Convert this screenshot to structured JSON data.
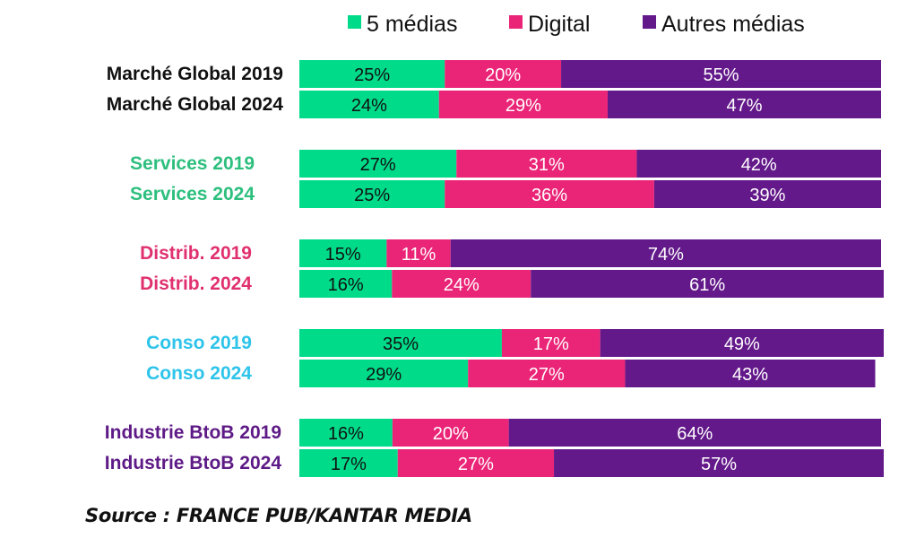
{
  "chart_data": {
    "type": "bar",
    "orientation": "horizontal",
    "stacked": true,
    "title": "",
    "xlabel": "",
    "ylabel": "",
    "grid": false,
    "legend_position": "top",
    "series": [
      {
        "name": "5 médias",
        "color": "#00DB8A",
        "label_color": "#111111",
        "values": [
          25,
          24,
          27,
          25,
          15,
          16,
          35,
          29,
          16,
          17
        ]
      },
      {
        "name": "Digital",
        "color": "#EA2577",
        "label_color": "#FFFFFF",
        "values": [
          20,
          29,
          31,
          36,
          11,
          24,
          17,
          27,
          20,
          27
        ]
      },
      {
        "name": "Autres médias",
        "color": "#63198A",
        "label_color": "#FFFFFF",
        "values": [
          55,
          47,
          42,
          39,
          74,
          61,
          49,
          43,
          64,
          57
        ]
      }
    ],
    "categories": [
      {
        "label": "Marché Global 2019",
        "group": 0,
        "color": "#111111"
      },
      {
        "label": "Marché Global 2024",
        "group": 0,
        "color": "#111111"
      },
      {
        "label": "Services 2019",
        "group": 1,
        "color": "#2DBF7E"
      },
      {
        "label": "Services 2024",
        "group": 1,
        "color": "#2DBF7E"
      },
      {
        "label": "Distrib. 2019",
        "group": 2,
        "color": "#E0306F"
      },
      {
        "label": "Distrib. 2024",
        "group": 2,
        "color": "#E0306F"
      },
      {
        "label": "Conso 2019",
        "group": 3,
        "color": "#2EC4EA"
      },
      {
        "label": "Conso 2024",
        "group": 3,
        "color": "#2EC4EA"
      },
      {
        "label": "Industrie BtoB 2019",
        "group": 4,
        "color": "#5E1A86"
      },
      {
        "label": "Industrie BtoB 2024",
        "group": 4,
        "color": "#5E1A86"
      }
    ],
    "value_suffix": "%",
    "source": "Source : FRANCE PUB/KANTAR MEDIA"
  }
}
